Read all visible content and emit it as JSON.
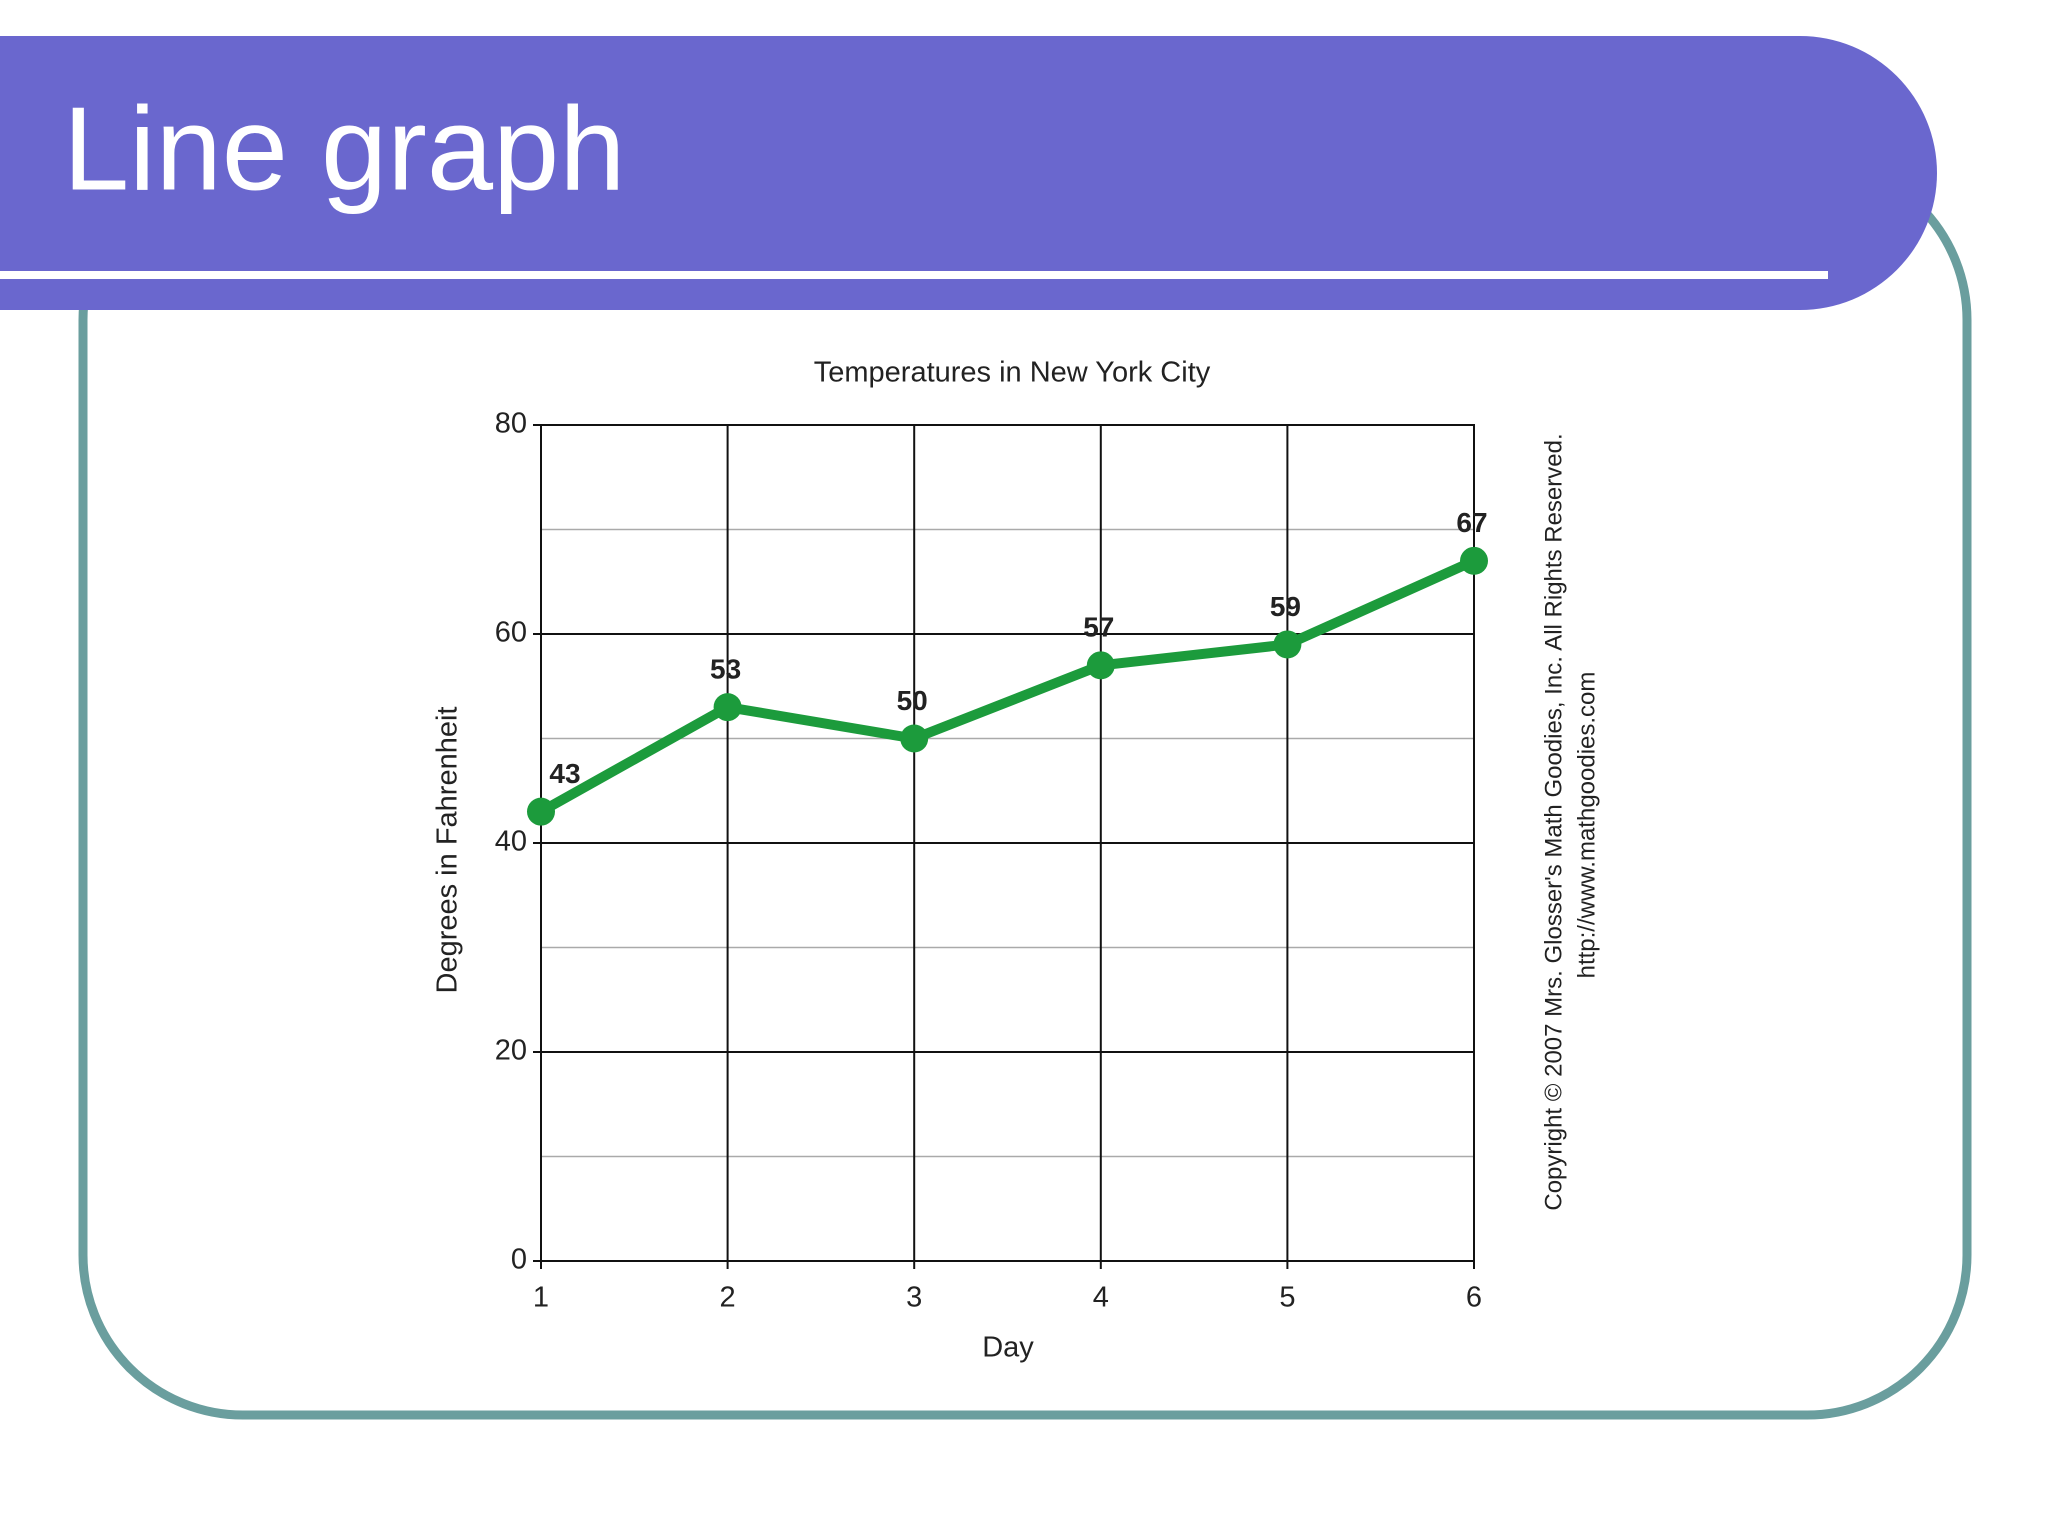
{
  "slide_title": "Line graph",
  "chart_data": {
    "type": "line",
    "title": "Temperatures in New York City",
    "x_label": "Day",
    "y_label": "Degrees in Fahrenheit",
    "x": [
      1,
      2,
      3,
      4,
      5,
      6
    ],
    "series": [
      {
        "name": "Temperature",
        "color": "#1c9b3c",
        "values": [
          43,
          53,
          50,
          57,
          59,
          67
        ]
      }
    ],
    "xlim": [
      1,
      6
    ],
    "xticks": [
      1,
      2,
      3,
      4,
      5,
      6
    ],
    "ylim": [
      0,
      80
    ],
    "yticks": [
      0,
      20,
      40,
      60,
      80
    ],
    "minor_yticks": [
      10,
      30,
      50,
      70
    ],
    "grid": true,
    "data_labels": true,
    "copyright": [
      "Copyright © 2007 Mrs. Glosser's Math Goodies, Inc. All Rights Reserved.",
      "http://www.mathgoodies.com"
    ]
  }
}
